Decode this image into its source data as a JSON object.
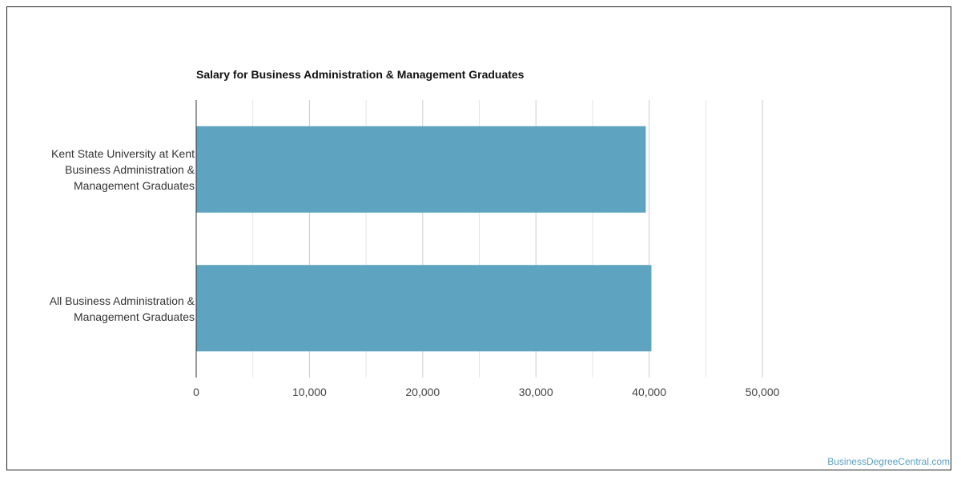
{
  "chart_data": {
    "type": "bar",
    "orientation": "horizontal",
    "title": "Salary for Business Administration & Management Graduates",
    "categories": [
      "Kent State University at Kent\nBusiness Administration &\nManagement Graduates",
      "All Business Administration &\nManagement Graduates"
    ],
    "values": [
      39700,
      40200
    ],
    "xlim": [
      0,
      50000
    ],
    "x_ticks": [
      0,
      10000,
      20000,
      30000,
      40000,
      50000
    ],
    "x_tick_labels": [
      "0",
      "10,000",
      "20,000",
      "30,000",
      "40,000",
      "50,000"
    ],
    "xlabel": "",
    "ylabel": "",
    "grid": true,
    "legend": "none",
    "bar_color": "#5ea3bf"
  },
  "watermark": "BusinessDegreeCentral.com"
}
